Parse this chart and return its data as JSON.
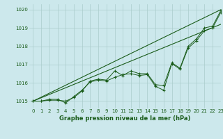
{
  "xlabel": "Graphe pression niveau de la mer (hPa)",
  "ylim": [
    1014.6,
    1020.3
  ],
  "xlim": [
    -0.5,
    23
  ],
  "yticks": [
    1015,
    1016,
    1017,
    1018,
    1019,
    1020
  ],
  "xticks": [
    0,
    1,
    2,
    3,
    4,
    5,
    6,
    7,
    8,
    9,
    10,
    11,
    12,
    13,
    14,
    15,
    16,
    17,
    18,
    19,
    20,
    21,
    22,
    23
  ],
  "background_color": "#cce8ec",
  "grid_color": "#aacccc",
  "line_color": "#1a5c1a",
  "lines": [
    {
      "x": [
        0,
        23
      ],
      "y": [
        1015.0,
        1020.0
      ],
      "marker": false
    },
    {
      "x": [
        0,
        23
      ],
      "y": [
        1015.0,
        1019.2
      ],
      "marker": false
    },
    {
      "x": [
        0,
        1,
        2,
        3,
        4,
        5,
        6,
        7,
        8,
        9,
        10,
        11,
        12,
        13,
        14,
        15,
        16,
        17,
        18,
        19,
        20,
        21,
        22,
        23
      ],
      "y": [
        1015.0,
        1015.0,
        1015.05,
        1015.05,
        1015.0,
        1015.2,
        1015.55,
        1016.1,
        1016.2,
        1016.15,
        1016.65,
        1016.4,
        1016.65,
        1016.5,
        1016.5,
        1015.9,
        1015.85,
        1017.1,
        1016.8,
        1018.0,
        1018.4,
        1019.0,
        1019.1,
        1019.95
      ],
      "marker": true
    },
    {
      "x": [
        0,
        1,
        2,
        3,
        4,
        5,
        6,
        7,
        8,
        9,
        10,
        11,
        12,
        13,
        14,
        15,
        16,
        17,
        18,
        19,
        20,
        21,
        22,
        23
      ],
      "y": [
        1015.0,
        1015.0,
        1015.1,
        1015.1,
        1014.9,
        1015.25,
        1015.6,
        1016.05,
        1016.15,
        1016.1,
        1016.3,
        1016.45,
        1016.5,
        1016.4,
        1016.45,
        1015.8,
        1015.6,
        1017.05,
        1016.75,
        1017.9,
        1018.3,
        1018.85,
        1019.0,
        1019.85
      ],
      "marker": true
    }
  ]
}
